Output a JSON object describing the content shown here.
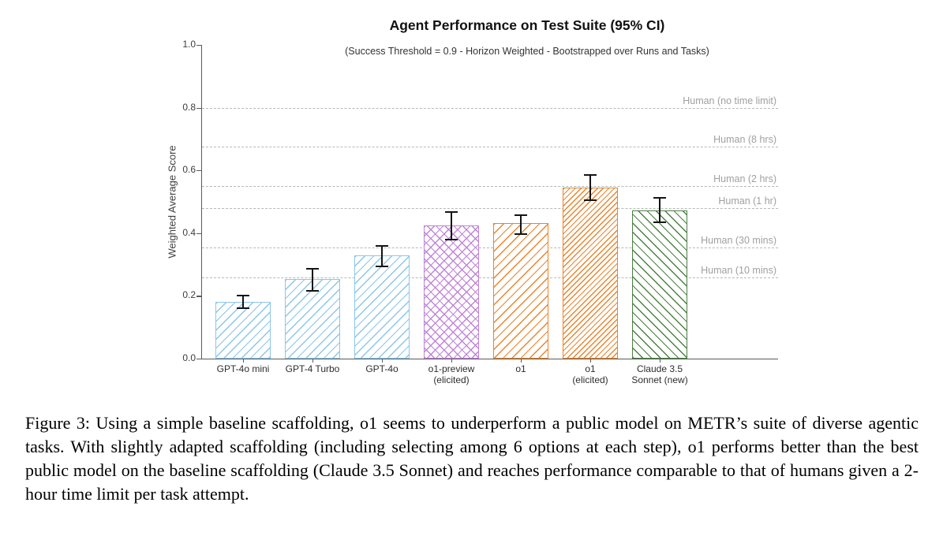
{
  "chart_data": {
    "type": "bar",
    "title": "Agent Performance on Test Suite (95% CI)",
    "subtitle": "(Success Threshold = 0.9 - Horizon Weighted - Bootstrapped over Runs and Tasks)",
    "ylabel": "Weighted Average Score",
    "xlabel": "",
    "ylim": [
      0,
      1.0
    ],
    "yticks": [
      0.0,
      0.2,
      0.4,
      0.6,
      0.8,
      1.0
    ],
    "grid": false,
    "legend": "none",
    "bars": [
      {
        "label": "GPT-4o mini",
        "value": 0.18,
        "ci_low": 0.16,
        "ci_high": 0.2,
        "color": "#8cc6e8",
        "hatch": "/"
      },
      {
        "label": "GPT-4 Turbo",
        "value": 0.253,
        "ci_low": 0.215,
        "ci_high": 0.287,
        "color": "#8cc6e8",
        "hatch": "/"
      },
      {
        "label": "GPT-4o",
        "value": 0.328,
        "ci_low": 0.295,
        "ci_high": 0.36,
        "color": "#8cc6e8",
        "hatch": "/"
      },
      {
        "label": "o1-preview\n(elicited)",
        "value": 0.425,
        "ci_low": 0.38,
        "ci_high": 0.468,
        "color": "#c084d8",
        "hatch": "x"
      },
      {
        "label": "o1",
        "value": 0.432,
        "ci_low": 0.398,
        "ci_high": 0.458,
        "color": "#e8852d",
        "hatch": "/"
      },
      {
        "label": "o1\n(elicited)",
        "value": 0.545,
        "ci_low": 0.505,
        "ci_high": 0.585,
        "color": "#e8852d",
        "hatch": "//"
      },
      {
        "label": "Claude 3.5\nSonnet (new)",
        "value": 0.472,
        "ci_low": 0.435,
        "ci_high": 0.512,
        "color": "#4b8142",
        "hatch": "\\"
      }
    ],
    "reference_lines": [
      {
        "label": "Human (no time limit)",
        "value": 0.8
      },
      {
        "label": "Human (8 hrs)",
        "value": 0.675
      },
      {
        "label": "Human (2 hrs)",
        "value": 0.55
      },
      {
        "label": "Human (1 hr)",
        "value": 0.48
      },
      {
        "label": "Human (30 mins)",
        "value": 0.355
      },
      {
        "label": "Human (10 mins)",
        "value": 0.26
      }
    ],
    "reference_line_color": "#b8b8b8",
    "reference_label_color": "#a0a0a0",
    "errorbar_color": "#141414"
  },
  "caption": {
    "text": "Figure 3: Using a simple baseline scaffolding, o1 seems to underperform a public model on METR’s suite of diverse agentic tasks. With slightly adapted scaffolding (including selecting among 6 options at each step), o1 performs better than the best public model on the baseline scaffolding (Claude 3.5 Sonnet) and reaches performance comparable to that of humans given a 2-hour time limit per task attempt."
  }
}
